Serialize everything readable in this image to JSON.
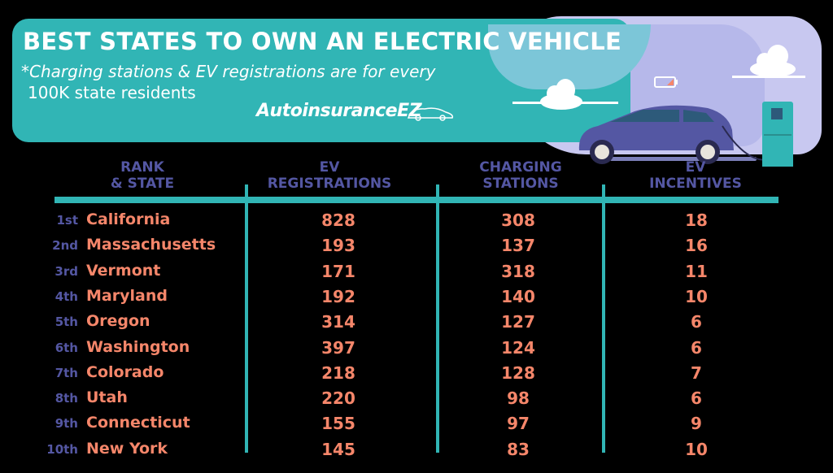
{
  "header": {
    "title": "BEST STATES TO OWN AN ELECTRIC VEHICLE",
    "subtitle_line1": "*Charging stations & EV registrations are for every",
    "subtitle_line2": "100K state residents",
    "logo_text": "AutoinsuranceEZ"
  },
  "colors": {
    "teal": "#31b5b5",
    "purple": "#5457a3",
    "coral": "#f5866a",
    "lavender": "#c8c8f0"
  },
  "table": {
    "columns": [
      {
        "line1": "RANK",
        "line2": "& STATE"
      },
      {
        "line1": "EV",
        "line2": "REGISTRATIONS"
      },
      {
        "line1": "CHARGING",
        "line2": "STATIONS"
      },
      {
        "line1": "EV",
        "line2": "INCENTIVES"
      }
    ],
    "rows": [
      {
        "rank": "1st",
        "state": "California",
        "ev_registrations": "828",
        "charging_stations": "308",
        "ev_incentives": "18"
      },
      {
        "rank": "2nd",
        "state": "Massachusetts",
        "ev_registrations": "193",
        "charging_stations": "137",
        "ev_incentives": "16"
      },
      {
        "rank": "3rd",
        "state": "Vermont",
        "ev_registrations": "171",
        "charging_stations": "318",
        "ev_incentives": "11"
      },
      {
        "rank": "4th",
        "state": "Maryland",
        "ev_registrations": "192",
        "charging_stations": "140",
        "ev_incentives": "10"
      },
      {
        "rank": "5th",
        "state": "Oregon",
        "ev_registrations": "314",
        "charging_stations": "127",
        "ev_incentives": "6"
      },
      {
        "rank": "6th",
        "state": "Washington",
        "ev_registrations": "397",
        "charging_stations": "124",
        "ev_incentives": "6"
      },
      {
        "rank": "7th",
        "state": "Colorado",
        "ev_registrations": "218",
        "charging_stations": "128",
        "ev_incentives": "7"
      },
      {
        "rank": "8th",
        "state": "Utah",
        "ev_registrations": "220",
        "charging_stations": "98",
        "ev_incentives": "6"
      },
      {
        "rank": "9th",
        "state": "Connecticut",
        "ev_registrations": "155",
        "charging_stations": "97",
        "ev_incentives": "9"
      },
      {
        "rank": "10th",
        "state": "New York",
        "ev_registrations": "145",
        "charging_stations": "83",
        "ev_incentives": "10"
      }
    ]
  },
  "chart_data": {
    "type": "table",
    "title": "BEST STATES TO OWN AN ELECTRIC VEHICLE",
    "note": "*Charging stations & EV registrations are for every 100K state residents",
    "columns": [
      "Rank & State",
      "EV Registrations",
      "Charging Stations",
      "EV Incentives"
    ],
    "categories": [
      "California",
      "Massachusetts",
      "Vermont",
      "Maryland",
      "Oregon",
      "Washington",
      "Colorado",
      "Utah",
      "Connecticut",
      "New York"
    ],
    "series": [
      {
        "name": "EV Registrations",
        "values": [
          828,
          193,
          171,
          192,
          314,
          397,
          218,
          220,
          155,
          145
        ]
      },
      {
        "name": "Charging Stations",
        "values": [
          308,
          137,
          318,
          140,
          127,
          124,
          128,
          98,
          97,
          83
        ]
      },
      {
        "name": "EV Incentives",
        "values": [
          18,
          16,
          11,
          10,
          6,
          6,
          7,
          6,
          9,
          10
        ]
      }
    ]
  }
}
